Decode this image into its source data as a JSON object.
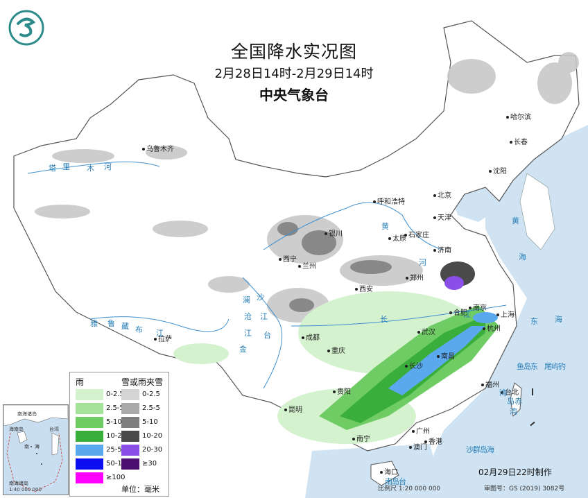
{
  "title": {
    "main": "全国降水实况图",
    "period": "2月28日14时-2月29日14时",
    "issuer": "中央气象台"
  },
  "legend": {
    "rain_heading": "雨",
    "snow_heading": "雪或雨夹雪",
    "rain": [
      {
        "label": "0-2.5",
        "color": "#d5f2cf"
      },
      {
        "label": "2.5-5",
        "color": "#a5e29a"
      },
      {
        "label": "5-10",
        "color": "#6fcc64"
      },
      {
        "label": "10-25",
        "color": "#3aae3a"
      },
      {
        "label": "25-50",
        "color": "#5aa8ee"
      },
      {
        "label": "50-100",
        "color": "#0a0ef0"
      },
      {
        "label": "≥100",
        "color": "#ff00ff"
      }
    ],
    "snow": [
      {
        "label": "0-2.5",
        "color": "#d4d4d4"
      },
      {
        "label": "2.5-5",
        "color": "#aaaaaa"
      },
      {
        "label": "5-10",
        "color": "#7e7e7e"
      },
      {
        "label": "10-20",
        "color": "#4a4a4a"
      },
      {
        "label": "20-30",
        "color": "#8a4fe6"
      },
      {
        "label": "≥30",
        "color": "#4a0f6e"
      }
    ],
    "unit": "单位：毫米"
  },
  "cities": [
    "乌鲁木齐",
    "哈尔滨",
    "长春",
    "沈阳",
    "北京",
    "天津",
    "呼和浩特",
    "石家庄",
    "太原",
    "济南",
    "银川",
    "西宁",
    "兰州",
    "郑州",
    "西安",
    "合肥",
    "南京",
    "上海",
    "杭州",
    "武汉",
    "成都",
    "重庆",
    "长沙",
    "南昌",
    "拉萨",
    "福州",
    "台北",
    "贵阳",
    "昆明",
    "南宁",
    "广州",
    "澳门",
    "香港",
    "海口"
  ],
  "water_labels": [
    "黄",
    "海",
    "东",
    "海",
    "黄",
    "河",
    "长",
    "江",
    "塔",
    "里",
    "木",
    "河",
    "雅",
    "鲁",
    "藏",
    "布",
    "江",
    "澜",
    "沧",
    "江",
    "金",
    "沙",
    "江",
    "台",
    "湾",
    "岛",
    "赤",
    "尾",
    "屿",
    "钓",
    "鱼",
    "岛",
    "东",
    "沙",
    "群",
    "岛",
    "海",
    "南",
    "岛",
    "台",
    "湾"
  ],
  "inset": {
    "labels": [
      "南海诸岛",
      "南",
      "海",
      "台湾",
      "海南岛",
      "南海诸岛",
      "1:40 000 000"
    ]
  },
  "footer": {
    "made": "02月29日22时制作",
    "scale": "比例尺 1:20 000 000",
    "approval": "审图号：GS (2019) 3082号"
  }
}
